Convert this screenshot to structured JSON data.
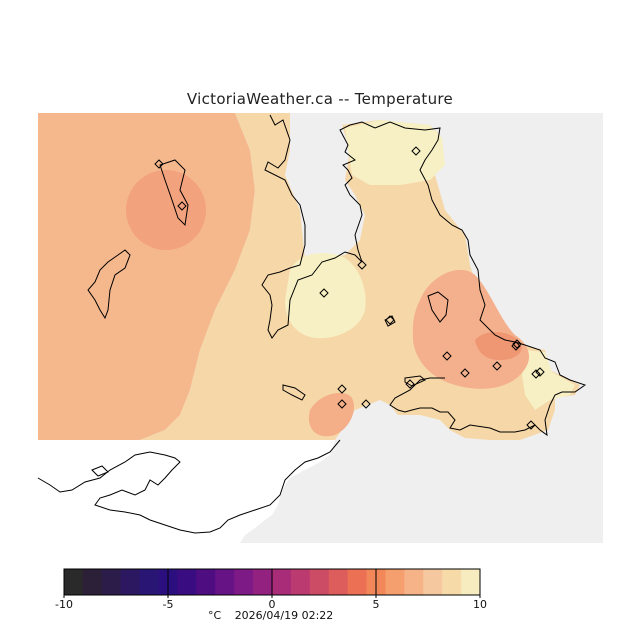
{
  "title": "VictoriaWeather.ca -- Temperature",
  "colorbar": {
    "ticks": [
      "-10",
      "-5",
      "0",
      "5",
      "10"
    ],
    "unit": "°C",
    "timestamp": "2026/04/19 02:22",
    "min": -10,
    "max": 10,
    "colors": [
      "#2a2a2a",
      "#2c2038",
      "#2c1c4a",
      "#2b1860",
      "#291573",
      "#2b0f7f",
      "#3a0c82",
      "#4f0d82",
      "#661386",
      "#7e1a85",
      "#93217f",
      "#a82c78",
      "#bb3b70",
      "#cc4c66",
      "#dc5d5b",
      "#ec7054",
      "#f2875a",
      "#f59e6e",
      "#f6b388",
      "#f6c89f",
      "#f6dba8",
      "#f6ecbf"
    ]
  },
  "stations": 18,
  "colors": {
    "ocean": "#efefef",
    "land_unmodelled": "#ffffff",
    "temp_warm": "#f5b88c",
    "temp_mid": "#f6d7a8",
    "temp_cool": "#f6f0c4",
    "temp_hot": "#f29f78",
    "coast": "#000000"
  }
}
